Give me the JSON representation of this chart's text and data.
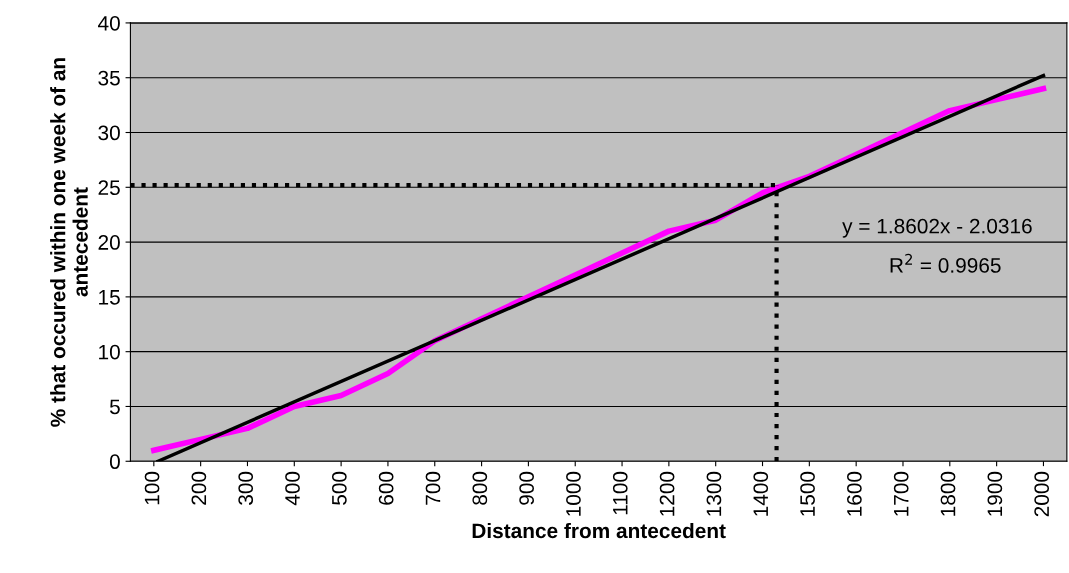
{
  "chart_data": {
    "type": "line",
    "xlabel": "Distance from antecedent",
    "ylabel": "% that occured within one week of an antecedent",
    "series": [
      {
        "color": "#ff00ff",
        "x": [
          100,
          200,
          300,
          400,
          500,
          600,
          700,
          800,
          900,
          1000,
          1100,
          1200,
          1300,
          1400,
          1500,
          1600,
          1700,
          1800,
          1900,
          2000
        ],
        "values": [
          1,
          2,
          3,
          5,
          6,
          8,
          11,
          13,
          15,
          17,
          19,
          21,
          22,
          24.5,
          26,
          28,
          30,
          32,
          33,
          34
        ]
      },
      {
        "color": "#000000",
        "x": [
          109,
          2000
        ],
        "values": [
          0,
          35.2
        ]
      }
    ],
    "xlim": [
      50,
      2050
    ],
    "xticks": [
      100,
      200,
      300,
      400,
      500,
      600,
      700,
      800,
      900,
      1000,
      1100,
      1200,
      1300,
      1400,
      1500,
      1600,
      1700,
      1800,
      1900,
      2000
    ],
    "ylim": [
      0,
      40
    ],
    "yticks": [
      0,
      5,
      10,
      15,
      20,
      25,
      30,
      35,
      40
    ],
    "grid": "y",
    "ref_lines": [
      {
        "axis": "y",
        "value": 25.2,
        "line_style": "dotted",
        "color": "#000000"
      },
      {
        "axis": "x",
        "value": 1430,
        "line_style": "dotted",
        "color": "#000000"
      }
    ],
    "annotations": [
      "y = 1.8602x - 2.0316",
      "R$^{2}$ = 0.9965"
    ]
  }
}
